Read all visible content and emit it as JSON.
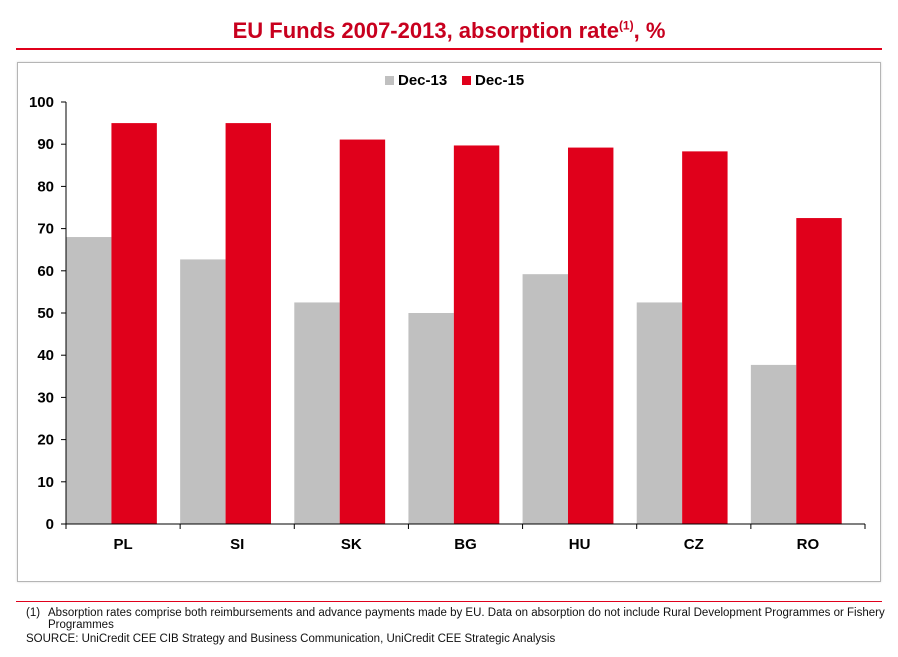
{
  "header": {
    "title_main": "EU Funds 2007-2013,  absorption rate",
    "title_sup": "(1)",
    "title_suffix": ", %"
  },
  "footer": {
    "note_number": "(1)",
    "note_text": "Absorption rates comprise both reimbursements and advance payments made by EU.  Data on absorption do not include Rural Development Programmes or Fishery Programmes",
    "source": "SOURCE: UniCredit CEE CIB Strategy and Business Communication, UniCredit CEE Strategic Analysis"
  },
  "chart_data": {
    "type": "bar",
    "title": "EU Funds 2007-2013, absorption rate(1), %",
    "categories": [
      "PL",
      "SI",
      "SK",
      "BG",
      "HU",
      "CZ",
      "RO"
    ],
    "series": [
      {
        "name": "Dec-13",
        "color": "#c0c0c0",
        "values": [
          68,
          62.7,
          52.5,
          50,
          59.2,
          52.5,
          37.7
        ]
      },
      {
        "name": "Dec-15",
        "color": "#e0001b",
        "values": [
          95,
          95,
          91.1,
          89.7,
          89.2,
          88.3,
          72.5
        ]
      }
    ],
    "yticks": [
      "0",
      "10",
      "20",
      "30",
      "40",
      "50",
      "60",
      "70",
      "80",
      "90",
      "100"
    ],
    "ylim": [
      0,
      100
    ],
    "xlabel": "",
    "ylabel": "",
    "grid": false,
    "legend": "top-center"
  }
}
